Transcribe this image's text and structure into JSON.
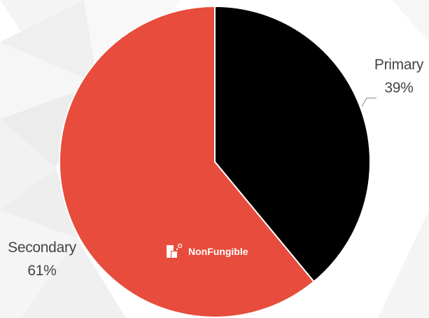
{
  "colors": {
    "background_polygons": [
      "#f6f6f6",
      "#f1f1f1",
      "#ebebeb",
      "#f3f3f3",
      "#eeeeee"
    ]
  },
  "watermark": {
    "text": "NonFungible",
    "icon": "nonfungible-logo-icon"
  },
  "chart_data": {
    "type": "pie",
    "start_angle_deg": 0,
    "direction": "clockwise",
    "slices": [
      {
        "name": "Primary",
        "label": "39%",
        "value": 39,
        "color": "#000000"
      },
      {
        "name": "Secondary",
        "label": "61%",
        "value": 61,
        "color": "#e74c3c"
      }
    ],
    "legend": "none"
  }
}
